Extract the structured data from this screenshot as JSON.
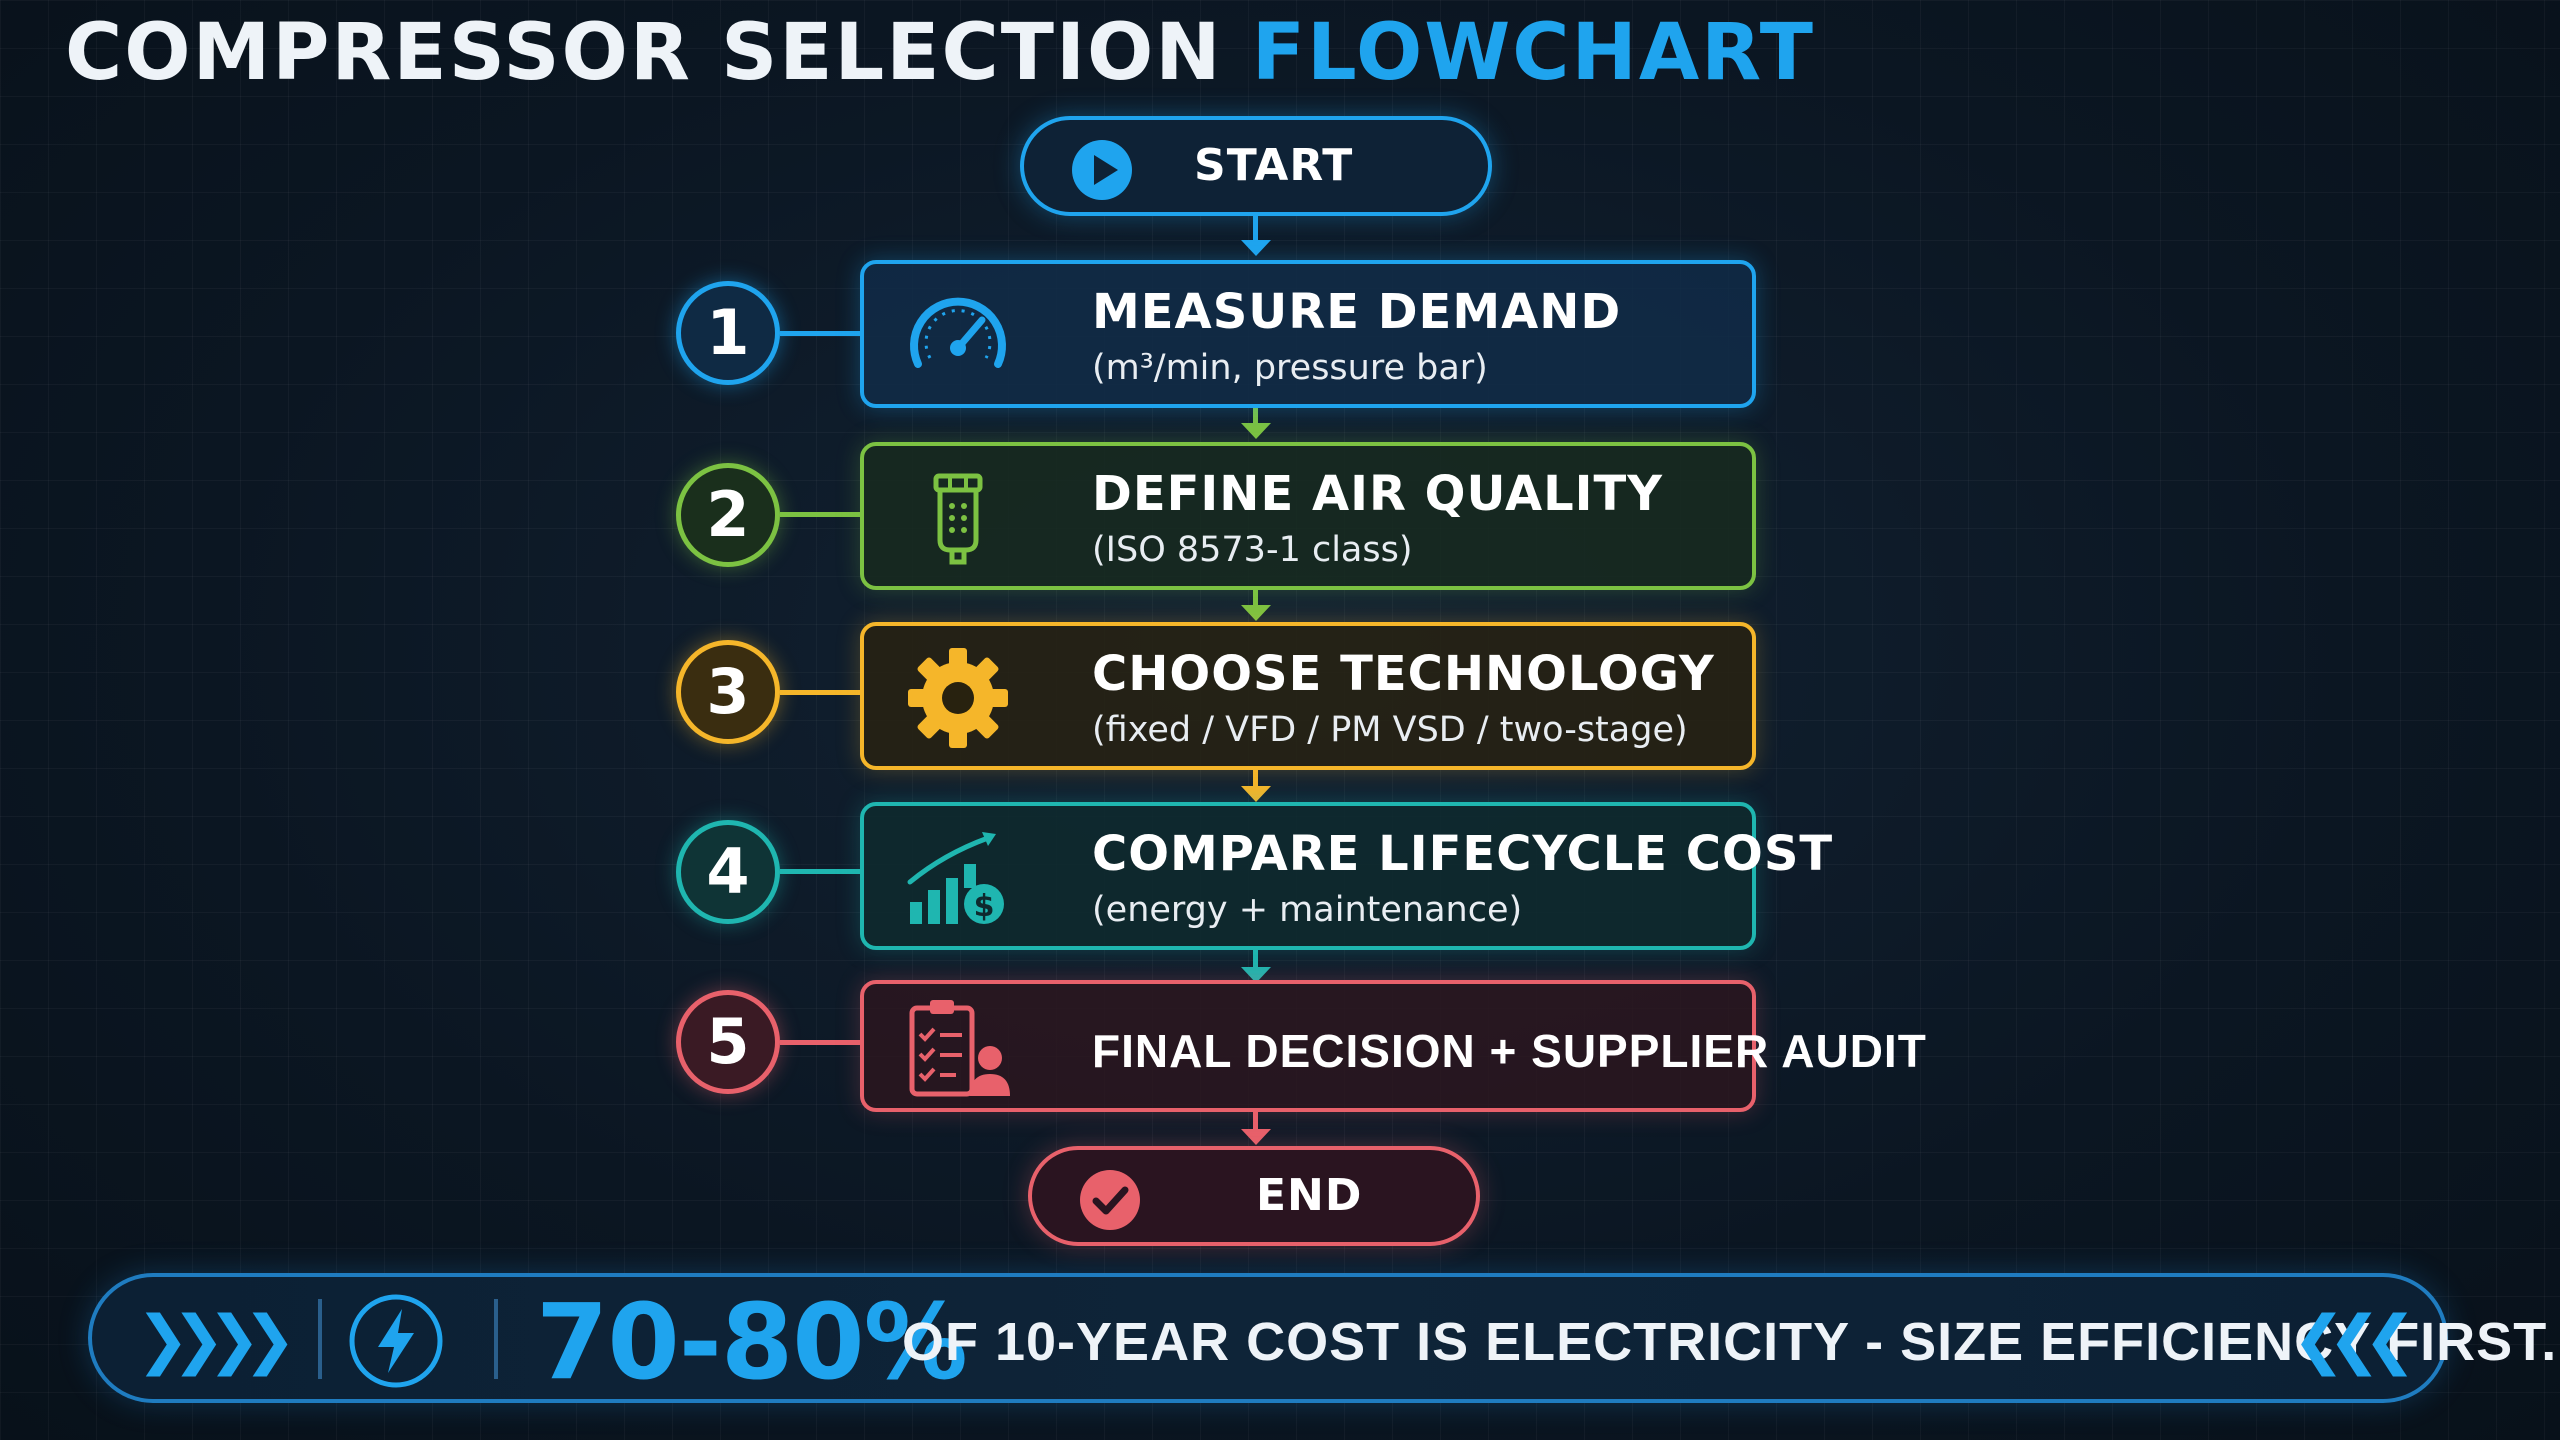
{
  "title": {
    "main": "COMPRESSOR SELECTION",
    "accent": "FLOWCHART"
  },
  "start": {
    "label": "START",
    "icon": "play-icon",
    "color": "#1fa4ee"
  },
  "steps": [
    {
      "number": "1",
      "title": "MEASURE DEMAND",
      "subtitle": "(m³/min, pressure bar)",
      "icon": "gauge-icon",
      "color": "#1fa4ee"
    },
    {
      "number": "2",
      "title": "DEFINE AIR QUALITY",
      "subtitle": "(ISO 8573-1 class)",
      "icon": "air-filter-icon",
      "color": "#7cc242"
    },
    {
      "number": "3",
      "title": "CHOOSE TECHNOLOGY",
      "subtitle": "(fixed / VFD / PM VSD / two-stage)",
      "icon": "gear-icon",
      "color": "#f5b62a"
    },
    {
      "number": "4",
      "title": "COMPARE LIFECYCLE COST",
      "subtitle": "(energy + maintenance)",
      "icon": "cost-chart-icon",
      "color": "#1fb6b0"
    },
    {
      "number": "5",
      "title": "FINAL DECISION + SUPPLIER AUDIT",
      "subtitle": "",
      "icon": "checklist-person-icon",
      "color": "#e8616b"
    }
  ],
  "end": {
    "label": "END",
    "icon": "check-icon",
    "color": "#e8616b"
  },
  "banner": {
    "percent": "70-80%",
    "text": "OF 10-YEAR COST IS ELECTRICITY - SIZE EFFICIENCY FIRST.",
    "left_chevrons": "❯❯❯❯",
    "right_chevrons": "❮❮❮",
    "icon": "lightning-icon"
  }
}
